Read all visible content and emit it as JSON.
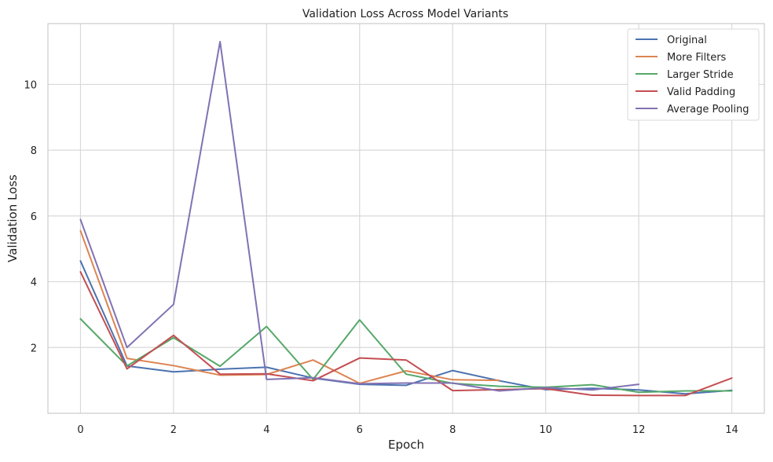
{
  "chart_data": {
    "type": "line",
    "title": "Validation Loss Across Model Variants",
    "xlabel": "Epoch",
    "ylabel": "Validation Loss",
    "xlim": [
      -0.7,
      14.7
    ],
    "ylim": [
      0.0,
      11.85
    ],
    "xticks": [
      0,
      2,
      4,
      6,
      8,
      10,
      12,
      14
    ],
    "yticks": [
      2,
      4,
      6,
      8,
      10
    ],
    "grid": true,
    "legend_position": "top-right",
    "series": [
      {
        "name": "Original",
        "color": "#4c72b0",
        "x": [
          0,
          1,
          2,
          3,
          4,
          5,
          6,
          7,
          8,
          9,
          10,
          11,
          12,
          13,
          14
        ],
        "y": [
          4.63,
          1.44,
          1.26,
          1.34,
          1.4,
          1.07,
          0.88,
          0.85,
          1.3,
          0.99,
          0.72,
          0.76,
          0.71,
          0.59,
          0.7
        ]
      },
      {
        "name": "More Filters",
        "color": "#dd8452",
        "x": [
          0,
          1,
          2,
          3,
          4,
          5,
          6,
          7,
          8,
          9
        ],
        "y": [
          5.55,
          1.67,
          1.45,
          1.16,
          1.18,
          1.62,
          0.91,
          1.29,
          1.02,
          1.0
        ]
      },
      {
        "name": "Larger Stride",
        "color": "#55a868",
        "x": [
          0,
          1,
          2,
          3,
          4,
          5,
          6,
          7,
          8,
          9,
          10,
          11,
          12,
          13,
          14
        ],
        "y": [
          2.87,
          1.44,
          2.3,
          1.43,
          2.64,
          1.03,
          2.84,
          1.19,
          0.91,
          0.82,
          0.79,
          0.87,
          0.64,
          0.68,
          0.68
        ]
      },
      {
        "name": "Valid Padding",
        "color": "#c44e52",
        "x": [
          0,
          1,
          2,
          3,
          4,
          5,
          6,
          7,
          8,
          9,
          10,
          11,
          12,
          13,
          14
        ],
        "y": [
          4.3,
          1.35,
          2.37,
          1.19,
          1.2,
          0.99,
          1.68,
          1.62,
          0.69,
          0.72,
          0.75,
          0.55,
          0.54,
          0.54,
          1.07
        ]
      },
      {
        "name": "Average Pooling",
        "color": "#8172b3",
        "x": [
          0,
          1,
          2,
          3,
          4,
          5,
          6,
          7,
          8,
          9,
          10,
          11,
          12
        ],
        "y": [
          5.89,
          2.0,
          3.31,
          11.3,
          1.03,
          1.08,
          0.9,
          0.92,
          0.92,
          0.68,
          0.78,
          0.71,
          0.88
        ]
      }
    ]
  }
}
